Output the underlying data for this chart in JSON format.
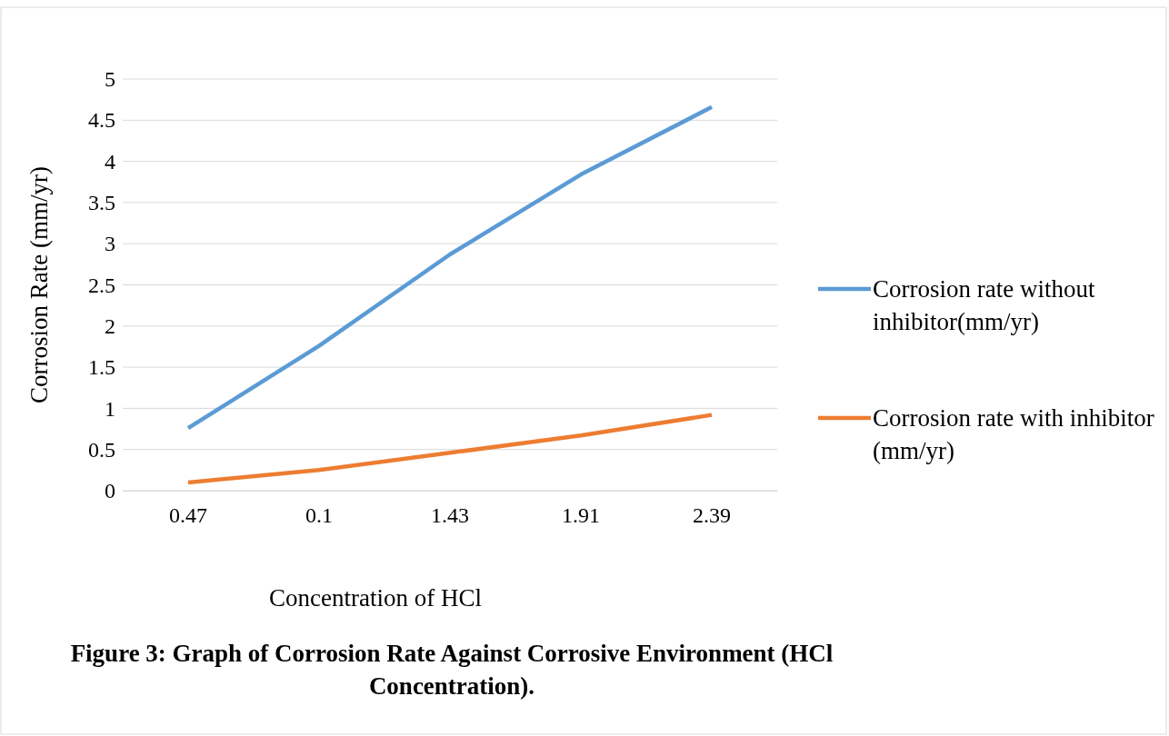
{
  "chart_data": {
    "type": "line",
    "title": "Figure 3: Graph of Corrosion Rate Against Corrosive Environment (HCl Concentration).",
    "xlabel": "Concentration of HCl",
    "ylabel": "Corrosion Rate (mm/yr)",
    "categories": [
      "0.47",
      "0.1",
      "1.43",
      "1.91",
      "2.39"
    ],
    "series": [
      {
        "name": "Corrosion rate without inhibitor(mm/yr)",
        "color": "#5b9bd5",
        "values": [
          0.76,
          1.76,
          2.87,
          3.84,
          4.66
        ]
      },
      {
        "name": "Corrosion rate with inhibitor (mm/yr)",
        "color": "#ed7d31",
        "values": [
          0.1,
          0.25,
          0.46,
          0.67,
          0.92
        ]
      }
    ],
    "ylim": [
      0,
      5
    ],
    "yticks": [
      0,
      0.5,
      1,
      1.5,
      2,
      2.5,
      3,
      3.5,
      4,
      4.5,
      5
    ],
    "grid": "y",
    "legend": "right",
    "marker": "none",
    "line_style": "solid"
  }
}
